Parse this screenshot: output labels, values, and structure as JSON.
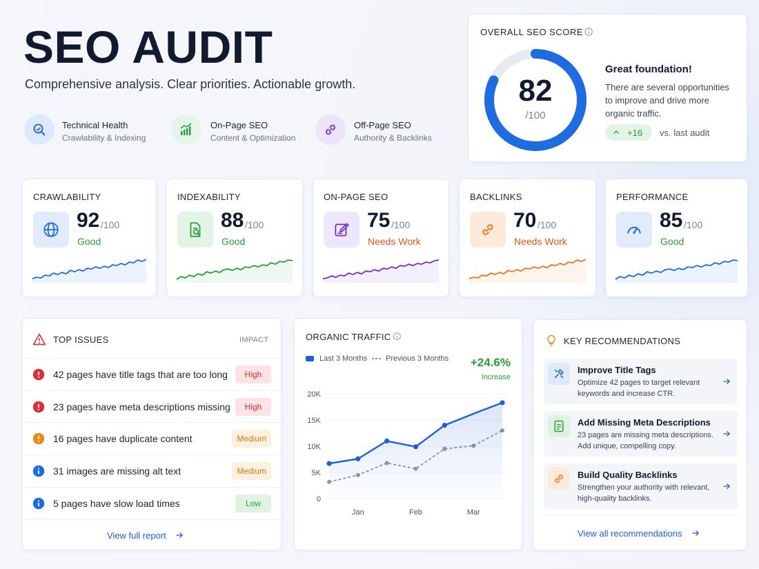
{
  "header": {
    "title": "SEO AUDIT",
    "subtitle": "Comprehensive analysis. Clear priorities. Actionable growth.",
    "pillars": [
      {
        "title": "Technical Health",
        "subtitle": "Crawlability & Indexing"
      },
      {
        "title": "On-Page SEO",
        "subtitle": "Content & Optimization"
      },
      {
        "title": "Off-Page SEO",
        "subtitle": "Authority & Backlinks"
      }
    ]
  },
  "overall": {
    "title": "OVERALL SEO SCORE",
    "score": 82,
    "out_of": "/100",
    "headline": "Great foundation!",
    "text": "There are several opportunities to improve and drive more organic traffic.",
    "change": "+16",
    "change_note": "vs. last audit",
    "color": "#1f6be0"
  },
  "metrics": [
    {
      "title": "CRAWLABILITY",
      "score": 92,
      "out_of": "/100",
      "status": "Good",
      "color": "#1f6be0"
    },
    {
      "title": "INDEXABILITY",
      "score": 88,
      "out_of": "/100",
      "status": "Good",
      "color": "#2a9d3a"
    },
    {
      "title": "ON-PAGE SEO",
      "score": 75,
      "out_of": "/100",
      "status": "Needs Work",
      "color": "#6a2fd0"
    },
    {
      "title": "BACKLINKS",
      "score": 70,
      "out_of": "/100",
      "status": "Needs Work",
      "color": "#e8761c"
    },
    {
      "title": "PERFORMANCE",
      "score": 85,
      "out_of": "/100",
      "status": "Good",
      "color": "#1f6be0"
    }
  ],
  "issues": {
    "title": "TOP ISSUES",
    "column": "IMPACT",
    "rows": [
      {
        "text": "42 pages have title tags that are too long",
        "impact": "High"
      },
      {
        "text": "23 pages have meta descriptions missing",
        "impact": "High"
      },
      {
        "text": "16 pages have duplicate content",
        "impact": "Medium"
      },
      {
        "text": "31 images are missing alt text",
        "impact": "Medium"
      },
      {
        "text": "5 pages have slow load times",
        "impact": "Low"
      }
    ],
    "link": "View full report"
  },
  "chart_data": {
    "type": "line",
    "title": "ORGANIC TRAFFIC",
    "change": "+24.6%",
    "change_label": "Increase",
    "categories": [
      null,
      "Jan",
      null,
      "Feb",
      null,
      "Mar",
      null
    ],
    "series": [
      {
        "name": "Last 3 Months",
        "color": "#1f5fd6",
        "values": [
          6700,
          7600,
          11000,
          9900,
          14000,
          16200,
          18300
        ]
      },
      {
        "name": "Previous 3 Months",
        "color": "#8e96a4",
        "values": [
          3200,
          4500,
          6800,
          5700,
          9500,
          10100,
          13000
        ]
      }
    ],
    "ylim": [
      0,
      20000
    ],
    "yticks": [
      0,
      {
        "value": 5000,
        "label": "5K"
      },
      {
        "value": 10000,
        "label": "10K"
      },
      {
        "value": 15000,
        "label": "15K"
      },
      {
        "value": 20000,
        "label": "20K"
      }
    ],
    "grid": true
  },
  "recommendations": {
    "title": "KEY RECOMMENDATIONS",
    "items": [
      {
        "title": "Improve Title Tags",
        "text": "Optimize 42 pages to target relevant keywords and increase CTR."
      },
      {
        "title": "Add Missing Meta Descriptions",
        "text": "23 pages are missing meta descriptions. Add unique, compelling copy."
      },
      {
        "title": "Build Quality Backlinks",
        "text": "Strengthen your authority with relevant, high-quality backlinks."
      }
    ],
    "link": "View all recommendations"
  }
}
